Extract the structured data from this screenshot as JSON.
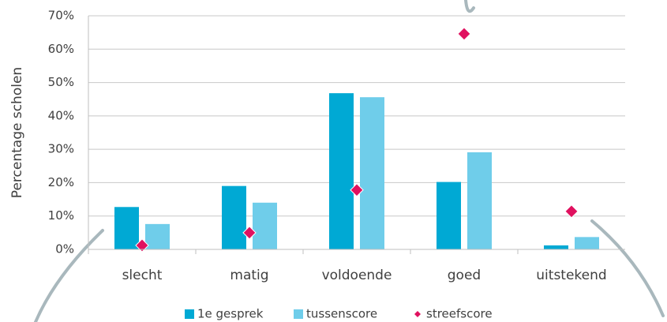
{
  "chart_data": {
    "type": "bar",
    "ylabel": "Percentage scholen",
    "categories": [
      "slecht",
      "matig",
      "voldoende",
      "goed",
      "uitstekend"
    ],
    "series": [
      {
        "name": "1e gesprek",
        "color": "#00a9d4",
        "values": [
          12.7,
          19,
          46.8,
          20.2,
          1.2
        ]
      },
      {
        "name": "tussenscore",
        "color": "#6fcdea",
        "values": [
          7.6,
          14,
          45.6,
          29.1,
          3.7
        ]
      },
      {
        "name": "streefscore",
        "color": "#e0115f",
        "marker": "diamond",
        "values": [
          1.2,
          5,
          17.8,
          64.6,
          11.4
        ]
      }
    ],
    "ylim": [
      0,
      70
    ],
    "yticks": [
      {
        "value": 0,
        "label": "0%"
      },
      {
        "value": 10,
        "label": "10%"
      },
      {
        "value": 20,
        "label": "20%"
      },
      {
        "value": 30,
        "label": "30%"
      },
      {
        "value": 40,
        "label": "40%"
      },
      {
        "value": 50,
        "label": "50%"
      },
      {
        "value": 60,
        "label": "60%"
      },
      {
        "value": 70,
        "label": "70%"
      }
    ],
    "grid": true,
    "legend": "bottom"
  }
}
